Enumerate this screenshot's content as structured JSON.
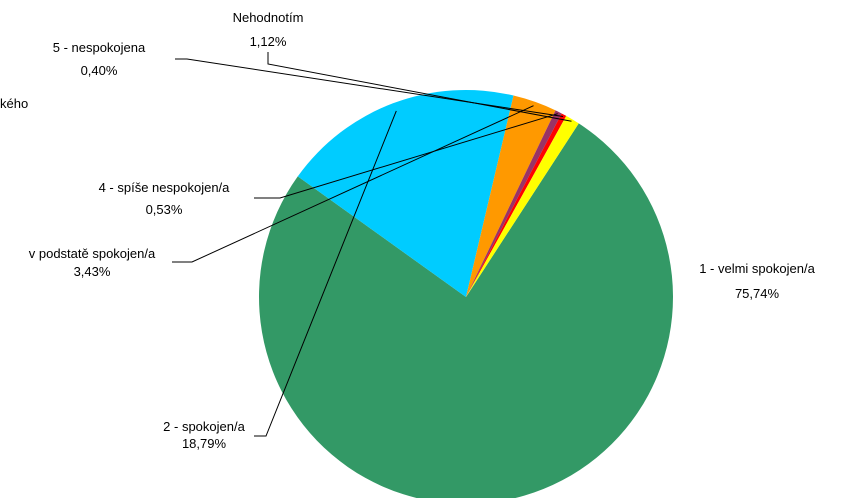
{
  "chart_data": {
    "type": "pie",
    "title": "",
    "partial_label": "kého",
    "slices": [
      {
        "name": "1 - velmi spokojen/a",
        "value": 75.74,
        "label": "75,74%",
        "color": "#339966"
      },
      {
        "name": "2 - spokojen/a",
        "value": 18.79,
        "label": "18,79%",
        "color": "#00CCFF"
      },
      {
        "name": "v podstatě spokojen/a",
        "value": 3.43,
        "label": "3,43%",
        "color": "#FF9900"
      },
      {
        "name": "4 - spíše nespokojen/a",
        "value": 0.53,
        "label": "0,53%",
        "color": "#993366"
      },
      {
        "name": "5 - nespokojena",
        "value": 0.4,
        "label": "0,40%",
        "color": "#FF0000"
      },
      {
        "name": "Nehodnotím",
        "value": 1.12,
        "label": "1,12%",
        "color": "#FFFF00"
      }
    ]
  }
}
